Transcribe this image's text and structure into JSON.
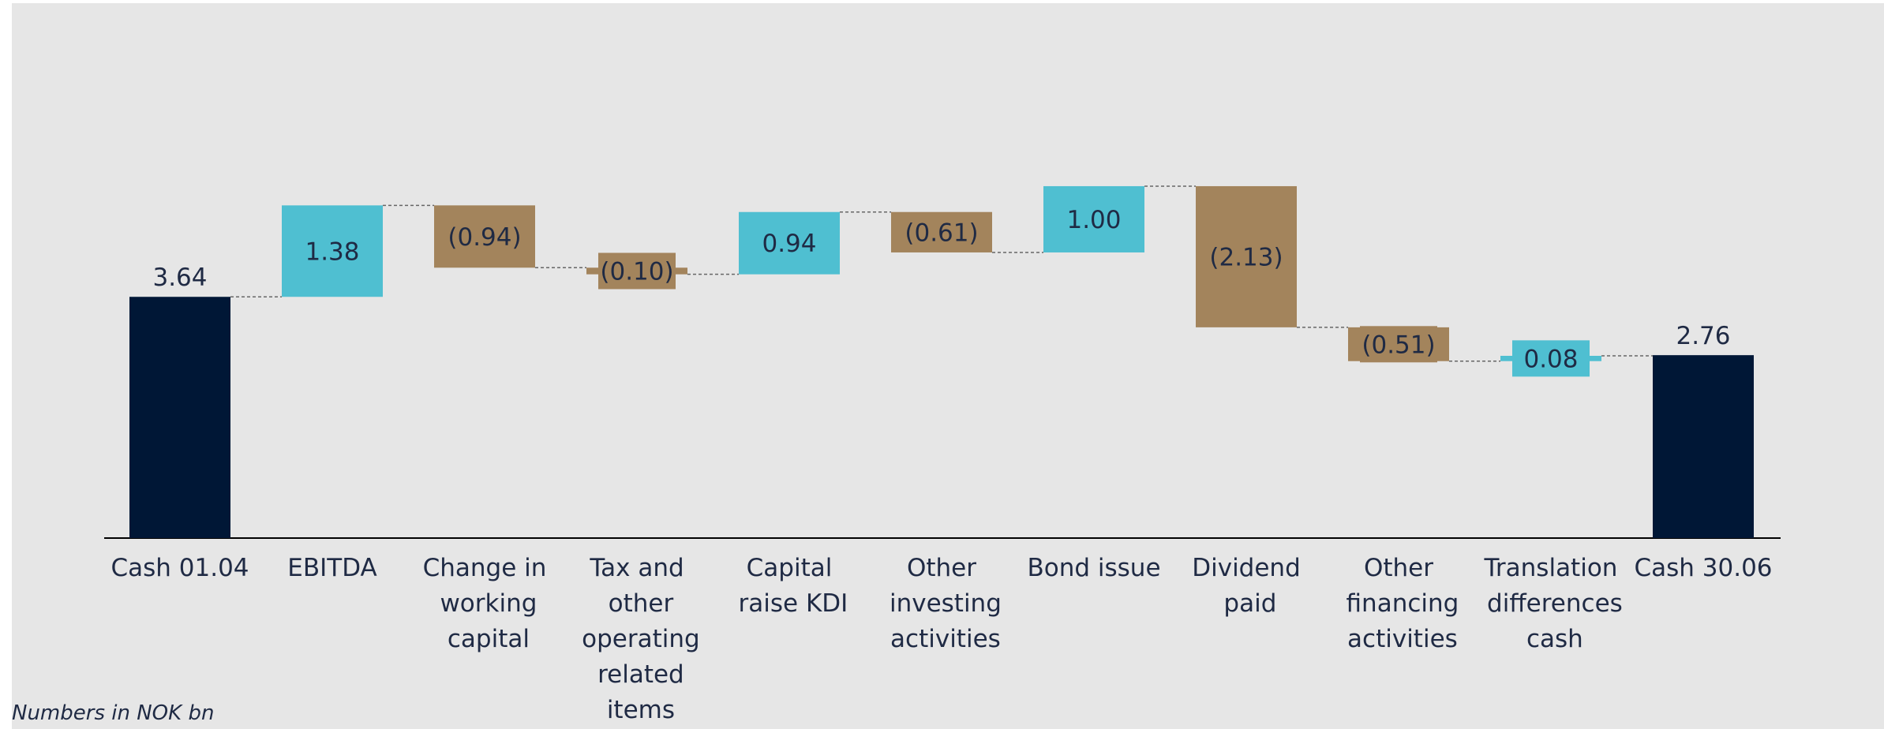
{
  "chart_data": {
    "type": "waterfall",
    "categories": [
      "Cash 01.04",
      "EBITDA",
      "Change in working capital",
      "Tax and other operating related items",
      "Capital raise KDI",
      "Other investing activities",
      "Bond issue",
      "Dividend paid",
      "Other financing activities",
      "Translation differences cash",
      "Cash 30.06"
    ],
    "values": [
      3.64,
      1.38,
      -0.94,
      -0.1,
      0.94,
      -0.61,
      1.0,
      -2.13,
      -0.51,
      0.08,
      2.76
    ],
    "value_labels": [
      "3.64",
      "1.38",
      "(0.94)",
      "(0.10)",
      "0.94",
      "(0.61)",
      "1.00",
      "(2.13)",
      "(0.51)",
      "0.08",
      "2.76"
    ],
    "colors": {
      "total": "#001736",
      "increase": "#4fbfd1",
      "decrease": "#a3845c"
    },
    "footnote": "Numbers in NOK bn"
  }
}
